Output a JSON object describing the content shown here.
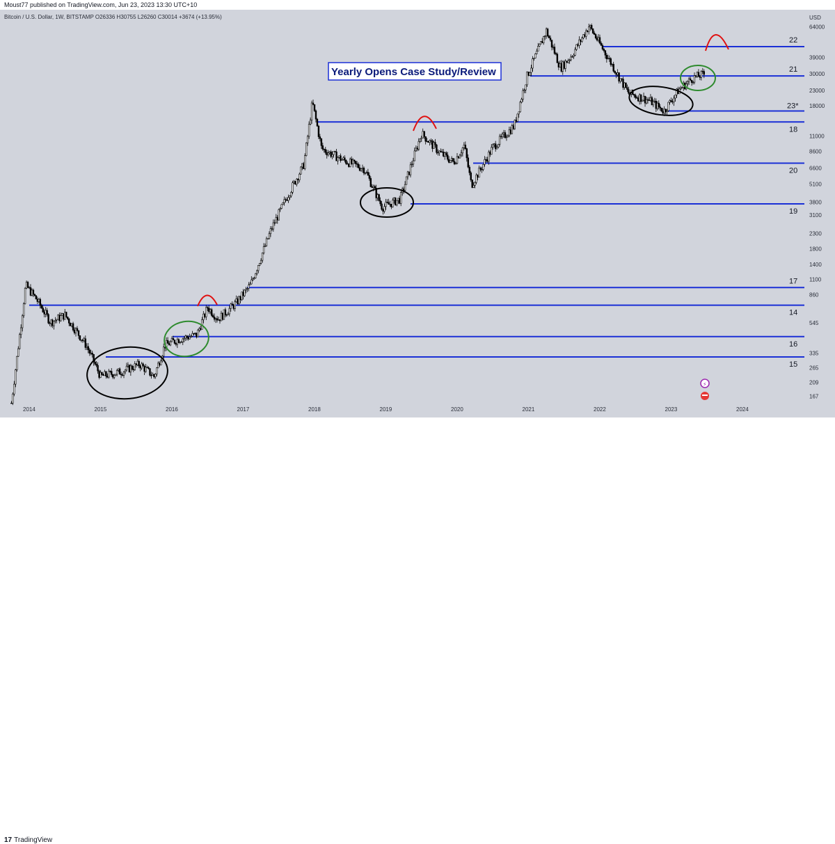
{
  "header": {
    "published": "Moust77 published on TradingView.com, Jun 23, 2023 13:30 UTC+10",
    "symbol_info": "Bitcoin / U.S. Dollar, 1W, BITSTAMP  O26336  H30755  L26260  C30014  +3674 (+13.95%)"
  },
  "footer": {
    "logo_mark": "17",
    "logo_text": "TradingView"
  },
  "colors": {
    "background": "#d1d4dc",
    "level_line": "#1a2fd6",
    "candle": "#000000",
    "red_marker": "#e01010",
    "green_circle": "#2e8b2e",
    "black_circle": "#000000",
    "label_23": "#9c27b0"
  },
  "chart_data": {
    "type": "candlestick",
    "title": "Yearly Opens Case Study/Review",
    "y_scale": "log",
    "y_axis_unit": "USD",
    "ylim": [
      150,
      80000
    ],
    "y_ticks": [
      167,
      209,
      265,
      335,
      545,
      860,
      1100,
      1400,
      1800,
      2300,
      3100,
      3800,
      5100,
      6600,
      8600,
      11000,
      18000,
      23000,
      30000,
      39000,
      64000
    ],
    "x_ticks": [
      "2014",
      "2015",
      "2016",
      "2017",
      "2018",
      "2019",
      "2020",
      "2021",
      "2022",
      "2023",
      "2024"
    ],
    "yearly_open_levels": [
      {
        "year_label": "22",
        "price": 46504
      },
      {
        "year_label": "21",
        "price": 29020
      },
      {
        "year_label": "23*",
        "price": 16496
      },
      {
        "year_label": "18",
        "price": 13832
      },
      {
        "year_label": "20",
        "price": 7121
      },
      {
        "year_label": "19",
        "price": 3701
      },
      {
        "year_label": "17",
        "price": 962
      },
      {
        "year_label": "14",
        "price": 725
      },
      {
        "year_label": "16",
        "price": 437
      },
      {
        "year_label": "15",
        "price": 315
      }
    ],
    "price_path": [
      {
        "t": 2013.75,
        "p": 150
      },
      {
        "t": 2013.95,
        "p": 1000
      },
      {
        "t": 2014.1,
        "p": 800
      },
      {
        "t": 2014.3,
        "p": 550
      },
      {
        "t": 2014.5,
        "p": 620
      },
      {
        "t": 2014.8,
        "p": 380
      },
      {
        "t": 2015.0,
        "p": 230
      },
      {
        "t": 2015.3,
        "p": 250
      },
      {
        "t": 2015.55,
        "p": 280
      },
      {
        "t": 2015.75,
        "p": 230
      },
      {
        "t": 2015.9,
        "p": 380
      },
      {
        "t": 2016.1,
        "p": 420
      },
      {
        "t": 2016.35,
        "p": 450
      },
      {
        "t": 2016.5,
        "p": 700
      },
      {
        "t": 2016.65,
        "p": 580
      },
      {
        "t": 2016.9,
        "p": 750
      },
      {
        "t": 2017.1,
        "p": 1000
      },
      {
        "t": 2017.4,
        "p": 2500
      },
      {
        "t": 2017.6,
        "p": 4000
      },
      {
        "t": 2017.85,
        "p": 7000
      },
      {
        "t": 2017.97,
        "p": 19000
      },
      {
        "t": 2018.1,
        "p": 9000
      },
      {
        "t": 2018.4,
        "p": 7500
      },
      {
        "t": 2018.7,
        "p": 6500
      },
      {
        "t": 2018.95,
        "p": 3500
      },
      {
        "t": 2019.2,
        "p": 4000
      },
      {
        "t": 2019.5,
        "p": 11500
      },
      {
        "t": 2019.75,
        "p": 8500
      },
      {
        "t": 2019.95,
        "p": 7200
      },
      {
        "t": 2020.1,
        "p": 9500
      },
      {
        "t": 2020.2,
        "p": 5000
      },
      {
        "t": 2020.5,
        "p": 9200
      },
      {
        "t": 2020.8,
        "p": 13000
      },
      {
        "t": 2020.98,
        "p": 29000
      },
      {
        "t": 2021.25,
        "p": 60000
      },
      {
        "t": 2021.45,
        "p": 33000
      },
      {
        "t": 2021.6,
        "p": 40000
      },
      {
        "t": 2021.85,
        "p": 65000
      },
      {
        "t": 2022.1,
        "p": 40000
      },
      {
        "t": 2022.4,
        "p": 22000
      },
      {
        "t": 2022.7,
        "p": 19500
      },
      {
        "t": 2022.9,
        "p": 16500
      },
      {
        "t": 2023.1,
        "p": 23000
      },
      {
        "t": 2023.3,
        "p": 28000
      },
      {
        "t": 2023.47,
        "p": 30000
      }
    ]
  }
}
